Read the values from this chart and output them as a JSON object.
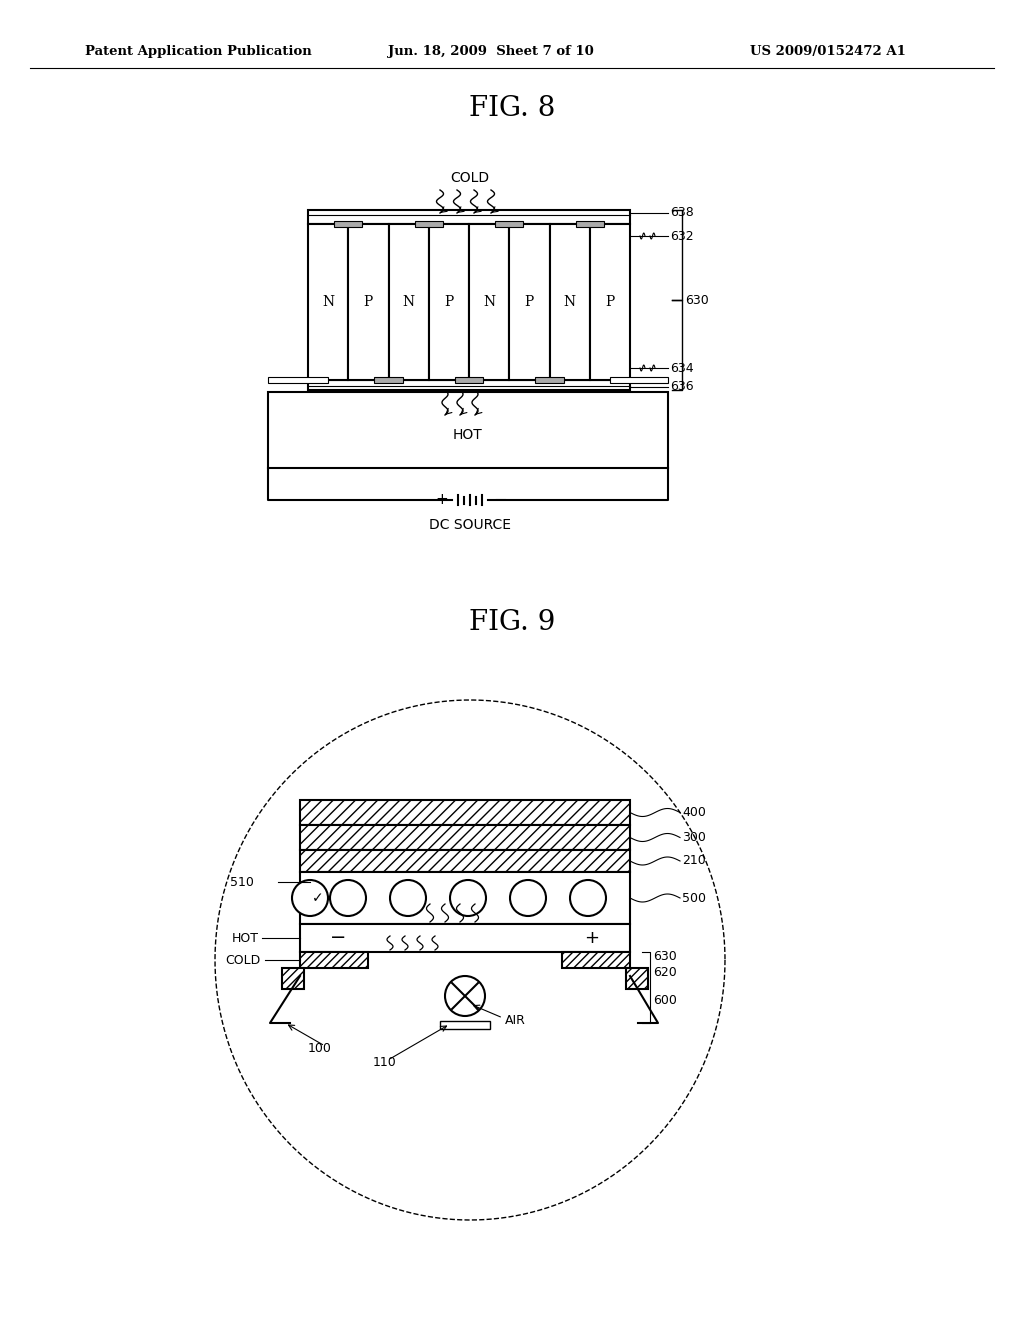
{
  "header_left": "Patent Application Publication",
  "header_mid": "Jun. 18, 2009  Sheet 7 of 10",
  "header_right": "US 2009/0152472 A1",
  "fig8_title": "FIG. 8",
  "fig9_title": "FIG. 9",
  "background_color": "#ffffff",
  "line_color": "#000000",
  "np_labels": [
    "N",
    "P",
    "N",
    "P",
    "N",
    "P",
    "N",
    "P"
  ],
  "cold_label": "COLD",
  "hot_label": "HOT",
  "dc_label": "DC SOURCE",
  "air_label": "AIR"
}
